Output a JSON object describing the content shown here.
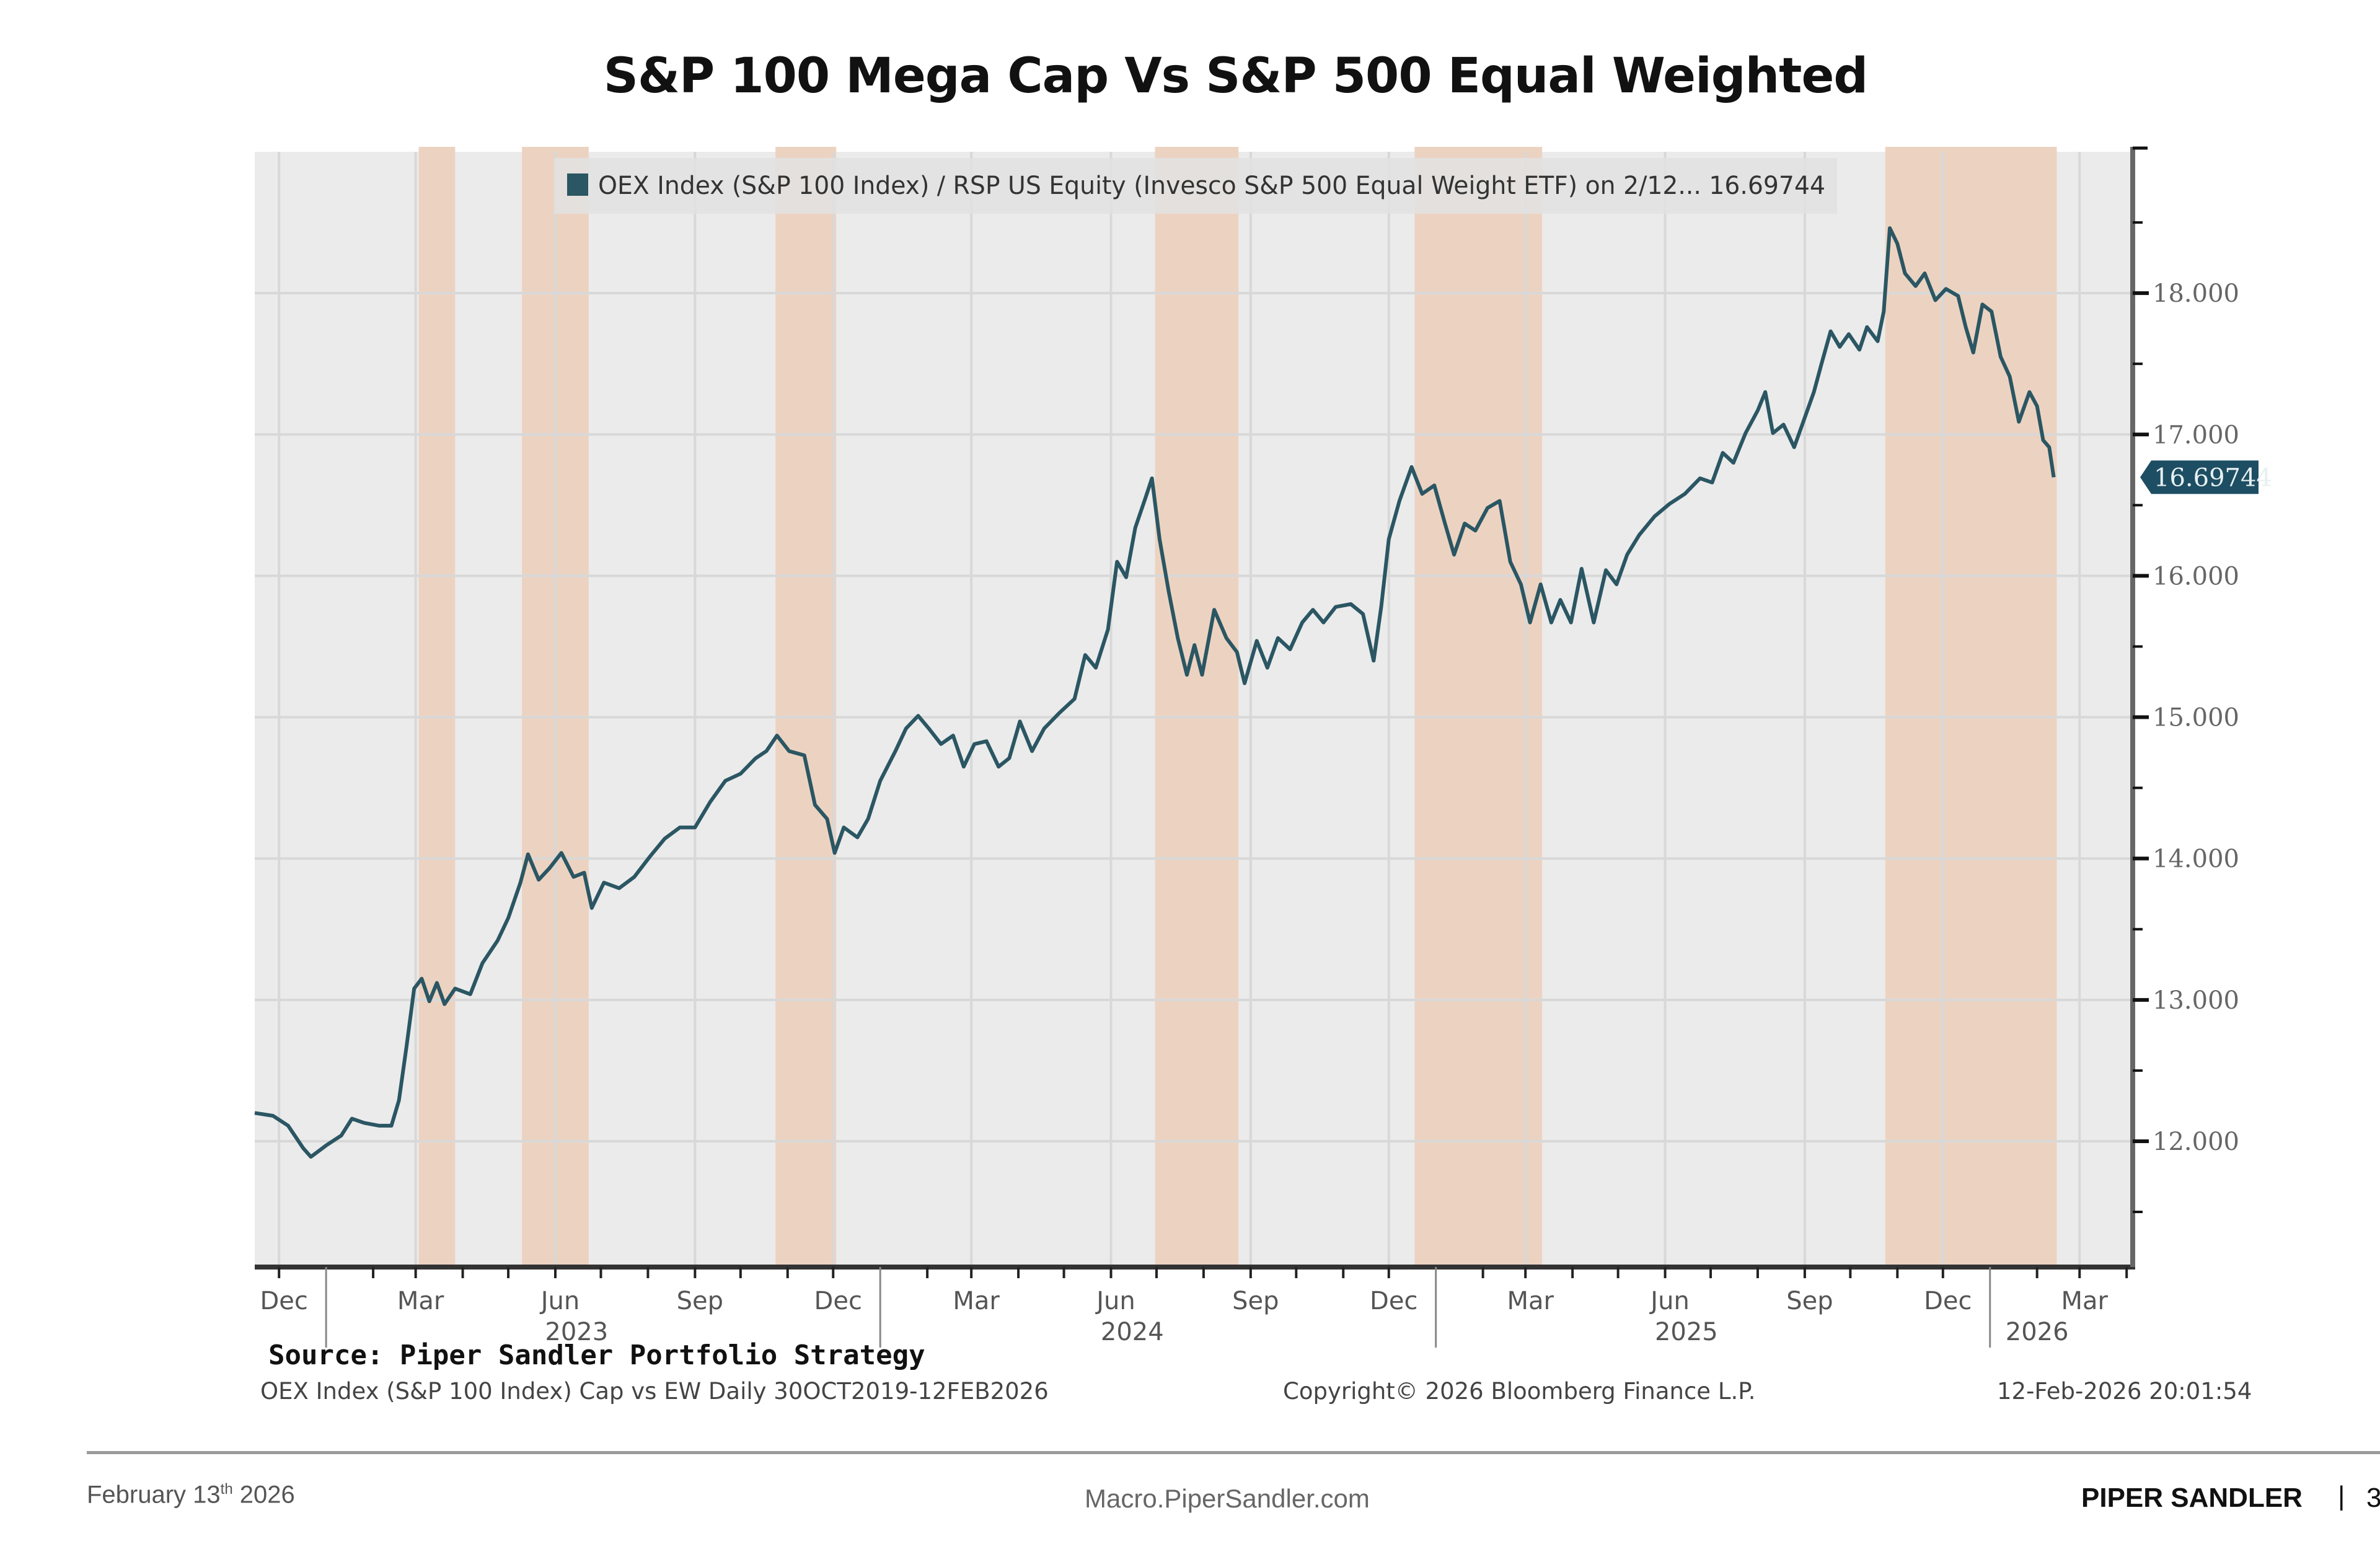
{
  "page": {
    "title": "S&P 100 Mega Cap Vs S&P 500 Equal Weighted",
    "source": "Source: Piper Sandler Portfolio Strategy",
    "bloomberg_desc": "OEX Index (S&P 100 Index) Cap vs EW Daily 30OCT2019-12FEB2026",
    "copyright": "Copyright© 2026 Bloomberg Finance L.P.",
    "timestamp": "12-Feb-2026 20:01:54",
    "footer": {
      "date_main": "February 13",
      "date_sup": "th",
      "date_year": " 2026",
      "url": "Macro.PiperSandler.com",
      "brand": "PIPER SANDLER",
      "separator": "|",
      "page_number": "3"
    }
  },
  "chart_data": {
    "type": "line",
    "title": "S&P 100 Mega Cap Vs S&P 500 Equal Weighted",
    "legend": {
      "text": "OEX Index (S&P 100 Index) / RSP US Equity (Invesco S&P 500 Equal Weight ETF) on 2/12... 16.69744",
      "placement": "top"
    },
    "last_value_label": "16.69744",
    "xlim": [
      "2022-11-15",
      "2026-04-05"
    ],
    "ylim": [
      11.11,
      19.0
    ],
    "y_axis_side": "right",
    "grid": true,
    "colors": {
      "line": "#2b5663",
      "plot_bg": "#ebebeb",
      "band": "#ecd3c1",
      "last_value_tag": "#1d4e63",
      "grid": "#d8d8d8"
    },
    "y_ticks": [
      {
        "value": 12,
        "label": "12.000"
      },
      {
        "value": 13,
        "label": "13.000"
      },
      {
        "value": 14,
        "label": "14.000"
      },
      {
        "value": 15,
        "label": "15.000"
      },
      {
        "value": 16,
        "label": "16.000"
      },
      {
        "value": 17,
        "label": "17.000"
      },
      {
        "value": 18,
        "label": "18.000"
      }
    ],
    "x_ticks": [
      {
        "date": "2022-12-01",
        "label": "Dec"
      },
      {
        "date": "2023-03-01",
        "label": "Mar"
      },
      {
        "date": "2023-06-01",
        "label": "Jun"
      },
      {
        "date": "2023-09-01",
        "label": "Sep"
      },
      {
        "date": "2023-12-01",
        "label": "Dec"
      },
      {
        "date": "2024-03-01",
        "label": "Mar"
      },
      {
        "date": "2024-06-01",
        "label": "Jun"
      },
      {
        "date": "2024-09-01",
        "label": "Sep"
      },
      {
        "date": "2024-12-01",
        "label": "Dec"
      },
      {
        "date": "2025-03-01",
        "label": "Mar"
      },
      {
        "date": "2025-06-01",
        "label": "Jun"
      },
      {
        "date": "2025-09-01",
        "label": "Sep"
      },
      {
        "date": "2025-12-01",
        "label": "Dec"
      },
      {
        "date": "2026-03-01",
        "label": "Mar"
      }
    ],
    "year_labels": [
      {
        "date": "2023-06-15",
        "label": "2023"
      },
      {
        "date": "2024-06-15",
        "label": "2024"
      },
      {
        "date": "2025-06-15",
        "label": "2025"
      },
      {
        "date": "2026-02-01",
        "label": "2026"
      }
    ],
    "shaded_periods": [
      {
        "start": "2023-03-03",
        "end": "2023-03-27"
      },
      {
        "start": "2023-05-10",
        "end": "2023-06-23"
      },
      {
        "start": "2023-10-24",
        "end": "2023-12-03"
      },
      {
        "start": "2024-06-30",
        "end": "2024-08-24"
      },
      {
        "start": "2024-12-18",
        "end": "2025-03-12"
      },
      {
        "start": "2025-10-24",
        "end": "2026-02-14"
      }
    ],
    "series": [
      {
        "points": [
          [
            "2022-11-15",
            12.2
          ],
          [
            "2022-11-27",
            12.18
          ],
          [
            "2022-12-07",
            12.11
          ],
          [
            "2022-12-17",
            11.95
          ],
          [
            "2022-12-22",
            11.89
          ],
          [
            "2023-01-01",
            11.97
          ],
          [
            "2023-01-11",
            12.04
          ],
          [
            "2023-01-18",
            12.16
          ],
          [
            "2023-01-26",
            12.13
          ],
          [
            "2023-02-05",
            12.11
          ],
          [
            "2023-02-13",
            12.11
          ],
          [
            "2023-02-18",
            12.29
          ],
          [
            "2023-02-23",
            12.67
          ],
          [
            "2023-02-28",
            13.08
          ],
          [
            "2023-03-05",
            13.15
          ],
          [
            "2023-03-10",
            12.99
          ],
          [
            "2023-03-15",
            13.12
          ],
          [
            "2023-03-20",
            12.97
          ],
          [
            "2023-03-27",
            13.08
          ],
          [
            "2023-04-06",
            13.04
          ],
          [
            "2023-04-14",
            13.26
          ],
          [
            "2023-04-24",
            13.42
          ],
          [
            "2023-05-01",
            13.58
          ],
          [
            "2023-05-09",
            13.83
          ],
          [
            "2023-05-14",
            14.03
          ],
          [
            "2023-05-21",
            13.85
          ],
          [
            "2023-05-28",
            13.93
          ],
          [
            "2023-06-05",
            14.04
          ],
          [
            "2023-06-13",
            13.87
          ],
          [
            "2023-06-20",
            13.9
          ],
          [
            "2023-06-25",
            13.65
          ],
          [
            "2023-07-03",
            13.83
          ],
          [
            "2023-07-13",
            13.79
          ],
          [
            "2023-07-23",
            13.87
          ],
          [
            "2023-08-02",
            14.01
          ],
          [
            "2023-08-12",
            14.14
          ],
          [
            "2023-08-22",
            14.22
          ],
          [
            "2023-09-01",
            14.22
          ],
          [
            "2023-09-11",
            14.4
          ],
          [
            "2023-09-21",
            14.55
          ],
          [
            "2023-10-01",
            14.6
          ],
          [
            "2023-10-11",
            14.71
          ],
          [
            "2023-10-18",
            14.76
          ],
          [
            "2023-10-25",
            14.87
          ],
          [
            "2023-11-02",
            14.76
          ],
          [
            "2023-11-12",
            14.73
          ],
          [
            "2023-11-19",
            14.38
          ],
          [
            "2023-11-27",
            14.28
          ],
          [
            "2023-12-02",
            14.04
          ],
          [
            "2023-12-08",
            14.22
          ],
          [
            "2023-12-17",
            14.15
          ],
          [
            "2023-12-24",
            14.28
          ],
          [
            "2024-01-01",
            14.55
          ],
          [
            "2024-01-11",
            14.76
          ],
          [
            "2024-01-18",
            14.92
          ],
          [
            "2024-01-26",
            15.01
          ],
          [
            "2024-02-02",
            14.92
          ],
          [
            "2024-02-10",
            14.81
          ],
          [
            "2024-02-18",
            14.87
          ],
          [
            "2024-02-25",
            14.65
          ],
          [
            "2024-03-03",
            14.81
          ],
          [
            "2024-03-11",
            14.83
          ],
          [
            "2024-03-19",
            14.65
          ],
          [
            "2024-03-26",
            14.71
          ],
          [
            "2024-04-02",
            14.97
          ],
          [
            "2024-04-10",
            14.76
          ],
          [
            "2024-04-18",
            14.92
          ],
          [
            "2024-04-28",
            15.03
          ],
          [
            "2024-05-08",
            15.13
          ],
          [
            "2024-05-15",
            15.44
          ],
          [
            "2024-05-22",
            15.35
          ],
          [
            "2024-05-30",
            15.62
          ],
          [
            "2024-06-05",
            16.1
          ],
          [
            "2024-06-11",
            15.99
          ],
          [
            "2024-06-17",
            16.34
          ],
          [
            "2024-06-24",
            16.56
          ],
          [
            "2024-06-28",
            16.69
          ],
          [
            "2024-07-03",
            16.26
          ],
          [
            "2024-07-09",
            15.89
          ],
          [
            "2024-07-15",
            15.56
          ],
          [
            "2024-07-21",
            15.3
          ],
          [
            "2024-07-26",
            15.51
          ],
          [
            "2024-07-31",
            15.3
          ],
          [
            "2024-08-08",
            15.76
          ],
          [
            "2024-08-16",
            15.56
          ],
          [
            "2024-08-23",
            15.46
          ],
          [
            "2024-08-28",
            15.24
          ],
          [
            "2024-09-05",
            15.54
          ],
          [
            "2024-09-12",
            15.35
          ],
          [
            "2024-09-19",
            15.56
          ],
          [
            "2024-09-27",
            15.48
          ],
          [
            "2024-10-05",
            15.67
          ],
          [
            "2024-10-12",
            15.76
          ],
          [
            "2024-10-19",
            15.67
          ],
          [
            "2024-10-27",
            15.78
          ],
          [
            "2024-11-06",
            15.8
          ],
          [
            "2024-11-14",
            15.73
          ],
          [
            "2024-11-21",
            15.4
          ],
          [
            "2024-11-26",
            15.78
          ],
          [
            "2024-12-01",
            16.26
          ],
          [
            "2024-12-08",
            16.53
          ],
          [
            "2024-12-16",
            16.77
          ],
          [
            "2024-12-23",
            16.58
          ],
          [
            "2024-12-31",
            16.64
          ],
          [
            "2025-01-07",
            16.37
          ],
          [
            "2025-01-13",
            16.15
          ],
          [
            "2025-01-20",
            16.37
          ],
          [
            "2025-01-27",
            16.32
          ],
          [
            "2025-02-04",
            16.48
          ],
          [
            "2025-02-12",
            16.53
          ],
          [
            "2025-02-19",
            16.1
          ],
          [
            "2025-02-26",
            15.94
          ],
          [
            "2025-03-04",
            15.67
          ],
          [
            "2025-03-11",
            15.94
          ],
          [
            "2025-03-18",
            15.67
          ],
          [
            "2025-03-24",
            15.83
          ],
          [
            "2025-03-31",
            15.67
          ],
          [
            "2025-04-07",
            16.05
          ],
          [
            "2025-04-15",
            15.67
          ],
          [
            "2025-04-23",
            16.04
          ],
          [
            "2025-04-30",
            15.94
          ],
          [
            "2025-05-07",
            16.15
          ],
          [
            "2025-05-15",
            16.29
          ],
          [
            "2025-05-25",
            16.42
          ],
          [
            "2025-06-04",
            16.51
          ],
          [
            "2025-06-14",
            16.58
          ],
          [
            "2025-06-24",
            16.69
          ],
          [
            "2025-07-02",
            16.66
          ],
          [
            "2025-07-09",
            16.87
          ],
          [
            "2025-07-16",
            16.8
          ],
          [
            "2025-07-24",
            17.01
          ],
          [
            "2025-08-01",
            17.17
          ],
          [
            "2025-08-06",
            17.3
          ],
          [
            "2025-08-11",
            17.01
          ],
          [
            "2025-08-18",
            17.07
          ],
          [
            "2025-08-25",
            16.91
          ],
          [
            "2025-08-31",
            17.09
          ],
          [
            "2025-09-07",
            17.3
          ],
          [
            "2025-09-12",
            17.5
          ],
          [
            "2025-09-18",
            17.73
          ],
          [
            "2025-09-24",
            17.62
          ],
          [
            "2025-09-30",
            17.71
          ],
          [
            "2025-10-07",
            17.6
          ],
          [
            "2025-10-12",
            17.76
          ],
          [
            "2025-10-19",
            17.66
          ],
          [
            "2025-10-23",
            17.87
          ],
          [
            "2025-10-27",
            18.46
          ],
          [
            "2025-11-01",
            18.35
          ],
          [
            "2025-11-06",
            18.14
          ],
          [
            "2025-11-13",
            18.05
          ],
          [
            "2025-11-19",
            18.14
          ],
          [
            "2025-11-26",
            17.95
          ],
          [
            "2025-12-03",
            18.03
          ],
          [
            "2025-12-11",
            17.98
          ],
          [
            "2025-12-16",
            17.76
          ],
          [
            "2025-12-21",
            17.58
          ],
          [
            "2025-12-27",
            17.92
          ],
          [
            "2026-01-02",
            17.87
          ],
          [
            "2026-01-08",
            17.55
          ],
          [
            "2026-01-14",
            17.41
          ],
          [
            "2026-01-20",
            17.09
          ],
          [
            "2026-01-27",
            17.3
          ],
          [
            "2026-02-01",
            17.2
          ],
          [
            "2026-02-05",
            16.96
          ],
          [
            "2026-02-09",
            16.91
          ],
          [
            "2026-02-12",
            16.69744
          ]
        ]
      }
    ]
  }
}
